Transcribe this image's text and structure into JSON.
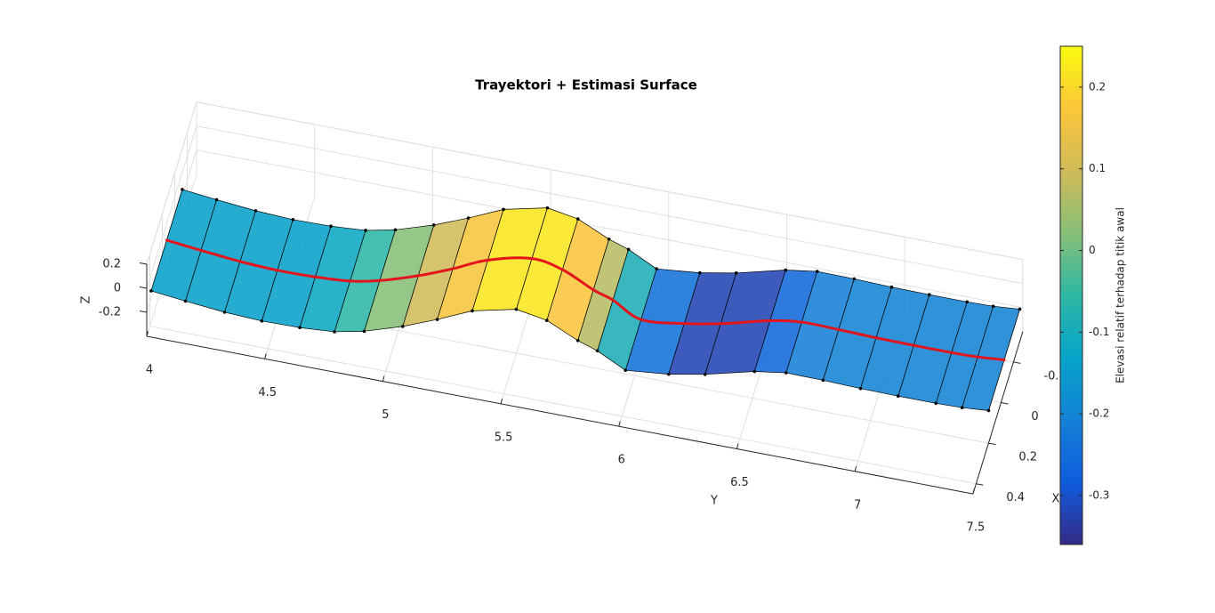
{
  "chart_data": {
    "type": "surface",
    "title": "Trayektori + Estimasi Surface",
    "xlabel": "X",
    "ylabel": "Y",
    "zlabel": "Z",
    "xlim": [
      -0.35,
      0.45
    ],
    "xticks": [
      -0.2,
      0,
      0.2,
      0.4
    ],
    "ylim": [
      4,
      7.5
    ],
    "yticks": [
      4,
      4.5,
      5,
      5.5,
      6,
      6.5,
      7,
      7.5
    ],
    "zlim": [
      -0.4,
      0.2
    ],
    "zticks": [
      -0.2,
      0,
      0.2
    ],
    "grid": true,
    "surface": {
      "y": [
        4.0,
        4.15,
        4.32,
        4.48,
        4.64,
        4.79,
        4.92,
        5.08,
        5.22,
        5.36,
        5.54,
        5.67,
        5.81,
        5.88,
        5.99,
        6.15,
        6.29,
        6.49,
        6.63,
        6.79,
        6.95,
        7.11,
        7.27,
        7.38,
        7.49
      ],
      "x": [
        0.13,
        0.147,
        0.164,
        0.172,
        0.169,
        0.18,
        0.196,
        0.184,
        0.16,
        0.128,
        0.104,
        0.106,
        0.139,
        0.091,
        0.056,
        -0.031,
        -0.085,
        -0.12,
        -0.097,
        -0.084,
        -0.079,
        -0.077,
        -0.077,
        -0.08,
        -0.09
      ],
      "z": [
        -0.14,
        -0.14,
        -0.14,
        -0.14,
        -0.14,
        -0.1,
        -0.02,
        0.06,
        0.13,
        0.2,
        0.24,
        0.2,
        0.14,
        0,
        -0.18,
        -0.3,
        -0.34,
        -0.3,
        -0.22,
        -0.2,
        -0.2,
        -0.2,
        -0.2,
        -0.2,
        -0.2
      ],
      "edge_color": "#000000"
    },
    "trajectory_color": "#e3141b",
    "colormap": [
      "#352a87",
      "#0f5cdd",
      "#1481d6",
      "#06a4ca",
      "#2eb7a4",
      "#87bf77",
      "#d1bb59",
      "#fbc63a",
      "#f9fb0e"
    ],
    "colorbar": {
      "label": "Elevasi relatif terhadap titik awal",
      "lim": [
        -0.36,
        0.25
      ],
      "ticks": [
        -0.3,
        -0.2,
        -0.1,
        0,
        0.1,
        0.2
      ]
    }
  }
}
